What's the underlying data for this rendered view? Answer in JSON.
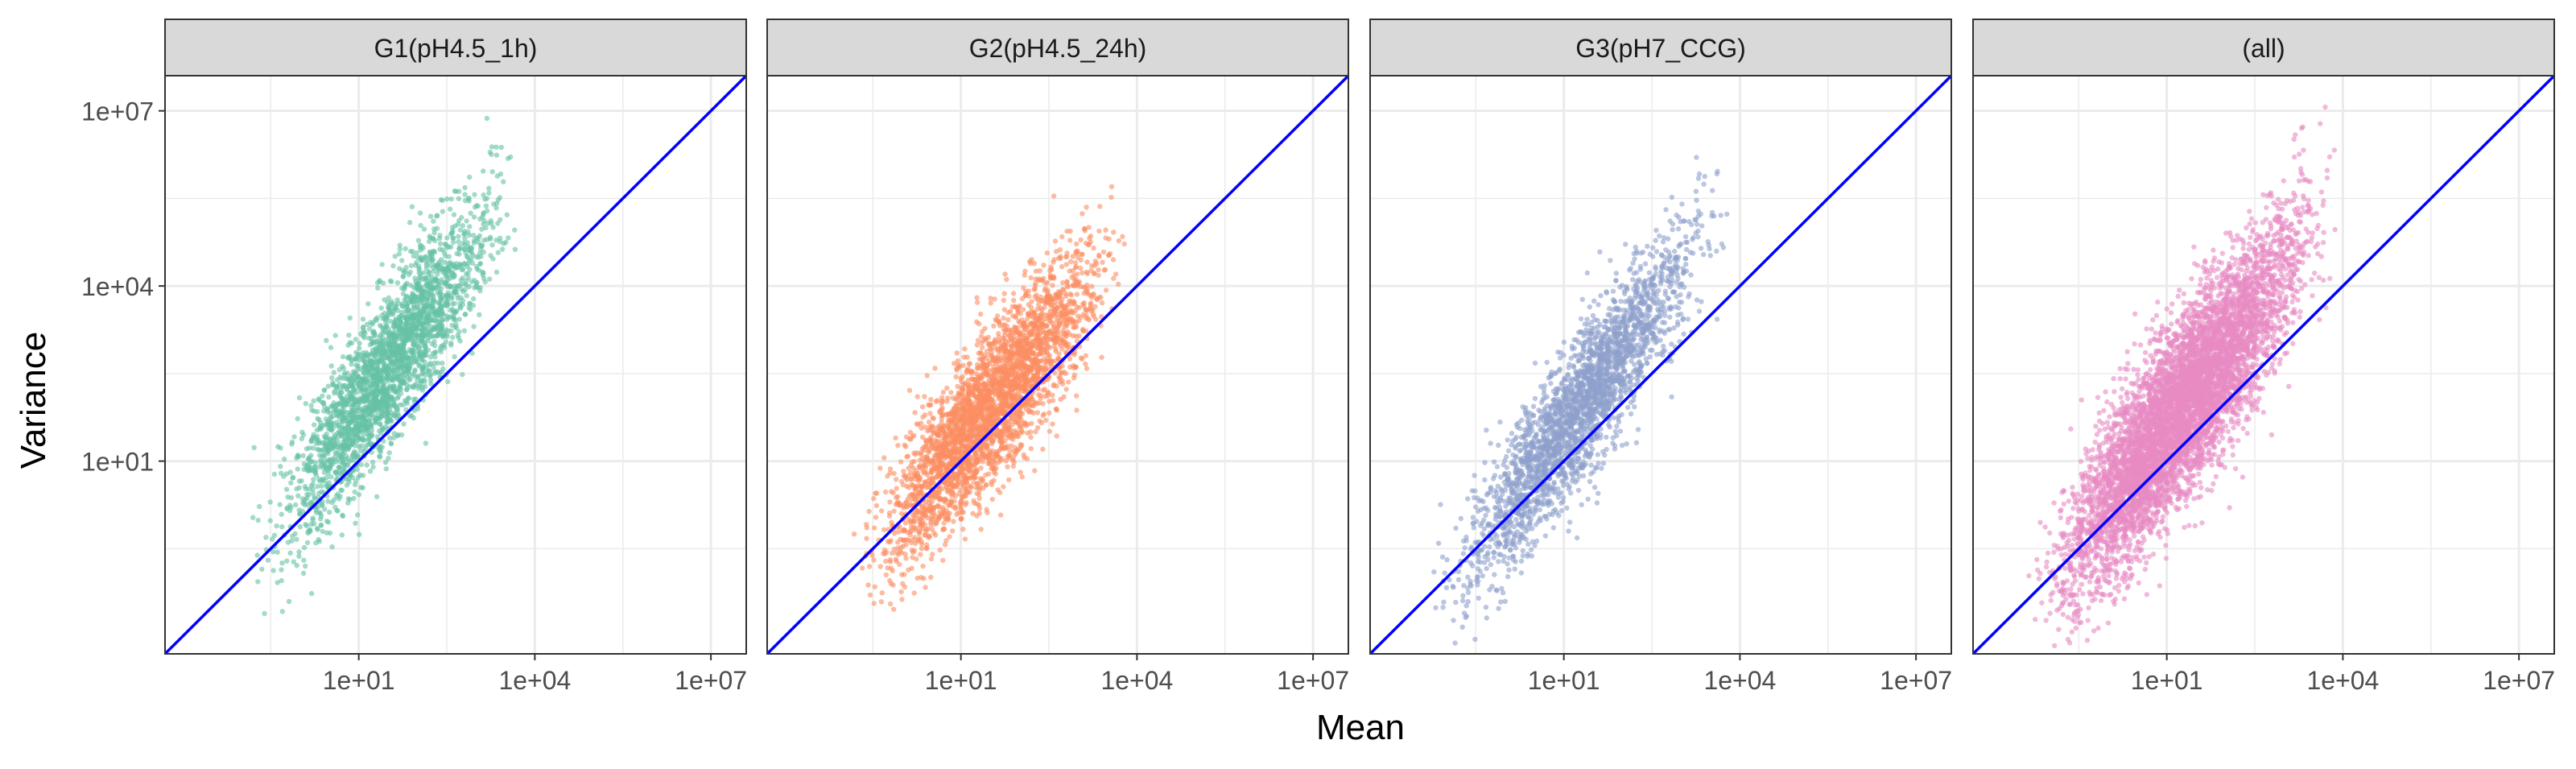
{
  "chart_data": {
    "type": "scatter",
    "facet_layout": "1 row x 4 columns, shared axes",
    "xlabel": "Mean",
    "ylabel": "Variance",
    "x_scale": "log10",
    "y_scale": "log10",
    "xlim": [
      0.005,
      40000000
    ],
    "ylim": [
      0.005,
      40000000
    ],
    "x_ticks": [
      {
        "value": 10,
        "label": "1e+01"
      },
      {
        "value": 10000,
        "label": "1e+04"
      },
      {
        "value": 10000000,
        "label": "1e+07"
      }
    ],
    "y_ticks": [
      {
        "value": 10,
        "label": "1e+01"
      },
      {
        "value": 10000,
        "label": "1e+04"
      },
      {
        "value": 10000000,
        "label": "1e+07"
      }
    ],
    "grid": true,
    "reference_line": {
      "slope": 1,
      "intercept": 0,
      "description": "variance = mean",
      "color": "#0000ff"
    },
    "panels": [
      {
        "label": "G1(pH4.5_1h)",
        "color": "#66c2a5",
        "mean_log10_range": [
          -1.0,
          4.0
        ],
        "variance_trend": {
          "slope": 1.4,
          "intercept_log10": 0.5,
          "spread_log10": 0.65
        },
        "n_points": 2600
      },
      {
        "label": "G2(pH4.5_24h)",
        "color": "#fc8d62",
        "mean_log10_range": [
          -1.0,
          4.0
        ],
        "variance_trend": {
          "slope": 1.2,
          "intercept_log10": 0.1,
          "spread_log10": 0.65
        },
        "n_points": 3200
      },
      {
        "label": "G3(pH7_CCG)",
        "color": "#8da0cb",
        "mean_log10_range": [
          -1.5,
          4.0
        ],
        "variance_trend": {
          "slope": 1.35,
          "intercept_log10": 0.2,
          "spread_log10": 0.6
        },
        "n_points": 2600
      },
      {
        "label": "(all)",
        "color": "#e78ac3",
        "mean_log10_range": [
          -1.5,
          4.0
        ],
        "variance_trend": {
          "slope": 1.3,
          "intercept_log10": 0.3,
          "spread_log10": 0.75
        },
        "n_points": 6000
      }
    ]
  }
}
